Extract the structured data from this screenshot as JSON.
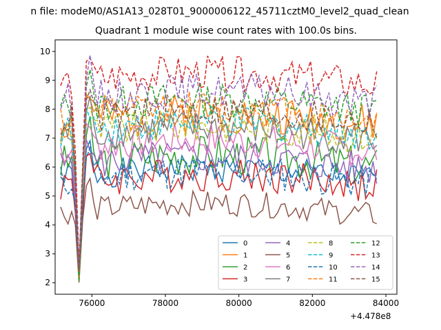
{
  "chart_data": {
    "type": "line",
    "suptitle": "n file: modeM0/AS1A13_028T01_9000006122_45711cztM0_level2_quad_clean",
    "title": "Quadrant 1 module wise count rates with 100.0s bins.",
    "xlabel": "",
    "ylabel": "",
    "x_offset_label": "+4.478e8",
    "xlim": [
      75000,
      84300
    ],
    "ylim": [
      1.6,
      10.4
    ],
    "xticks": [
      76000,
      78000,
      80000,
      82000,
      84000
    ],
    "xtick_labels": [
      "76000",
      "78000",
      "80000",
      "82000",
      "84000"
    ],
    "yticks": [
      2,
      3,
      4,
      5,
      6,
      7,
      8,
      9,
      10
    ],
    "ytick_labels": [
      "2",
      "3",
      "4",
      "5",
      "6",
      "7",
      "8",
      "9",
      "10"
    ],
    "grid": false,
    "legend": {
      "position": "lower-right",
      "columns": 4
    },
    "x_range": [
      75150,
      83800
    ],
    "bin_seconds": 100,
    "dip": {
      "x": 75650,
      "value": 2.0
    },
    "series": [
      {
        "name": "0",
        "color": "#1f77b4",
        "dash": "solid",
        "base": 5.6,
        "amp": 0.25,
        "seed": 1
      },
      {
        "name": "1",
        "color": "#ff7f0e",
        "dash": "solid",
        "base": 7.5,
        "amp": 0.35,
        "seed": 2
      },
      {
        "name": "2",
        "color": "#2ca02c",
        "dash": "solid",
        "base": 6.1,
        "amp": 0.35,
        "seed": 3
      },
      {
        "name": "3",
        "color": "#d62728",
        "dash": "solid",
        "base": 5.4,
        "amp": 0.3,
        "seed": 4
      },
      {
        "name": "4",
        "color": "#9467bd",
        "dash": "solid",
        "base": 6.0,
        "amp": 0.3,
        "seed": 5
      },
      {
        "name": "5",
        "color": "#8c564b",
        "dash": "solid",
        "base": 4.4,
        "amp": 0.22,
        "seed": 6
      },
      {
        "name": "6",
        "color": "#e377c2",
        "dash": "solid",
        "base": 6.6,
        "amp": 0.3,
        "seed": 7
      },
      {
        "name": "7",
        "color": "#7f7f7f",
        "dash": "solid",
        "base": 7.0,
        "amp": 0.3,
        "seed": 8
      },
      {
        "name": "8",
        "color": "#bcbd22",
        "dash": "dashed",
        "base": 7.1,
        "amp": 0.3,
        "seed": 9
      },
      {
        "name": "9",
        "color": "#17becf",
        "dash": "dashed",
        "base": 7.2,
        "amp": 0.3,
        "seed": 10
      },
      {
        "name": "10",
        "color": "#1f77b4",
        "dash": "dashed",
        "base": 5.5,
        "amp": 0.3,
        "seed": 11
      },
      {
        "name": "11",
        "color": "#ff7f0e",
        "dash": "dashed",
        "base": 7.7,
        "amp": 0.3,
        "seed": 12
      },
      {
        "name": "12",
        "color": "#2ca02c",
        "dash": "dashed",
        "base": 8.0,
        "amp": 0.3,
        "seed": 13
      },
      {
        "name": "13",
        "color": "#d62728",
        "dash": "dashed",
        "base": 8.9,
        "amp": 0.3,
        "seed": 14
      },
      {
        "name": "14",
        "color": "#9467bd",
        "dash": "dashed",
        "base": 8.3,
        "amp": 0.3,
        "seed": 15
      },
      {
        "name": "15",
        "color": "#8c564b",
        "dash": "dashed",
        "base": 7.6,
        "amp": 0.3,
        "seed": 16
      }
    ]
  }
}
